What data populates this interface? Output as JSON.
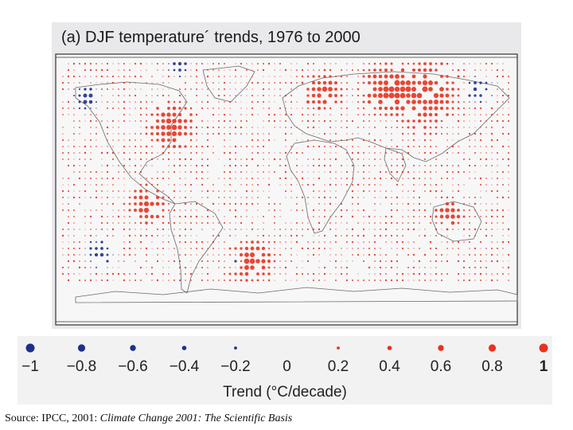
{
  "map": {
    "panel": "(a)",
    "title": "(a) DJF temperature´ trends, 1976 to 2000",
    "warm_color": "#e8321e",
    "cool_color": "#1d2f8c"
  },
  "legend": {
    "values": [
      -1,
      -0.8,
      -0.6,
      -0.4,
      -0.2,
      0,
      0.2,
      0.4,
      0.6,
      0.8,
      1
    ],
    "labels": [
      "−1",
      "−0.8",
      "−0.6",
      "−0.4",
      "−0.2",
      "0",
      "0.2",
      "0.4",
      "0.6",
      "0.8",
      "1"
    ],
    "axis_label": "Trend (°C/decade)"
  },
  "source": {
    "prefix": "Source:  IPCC, 2001:  ",
    "title": "Climate Change 2001:  The Scientific Basis"
  }
}
